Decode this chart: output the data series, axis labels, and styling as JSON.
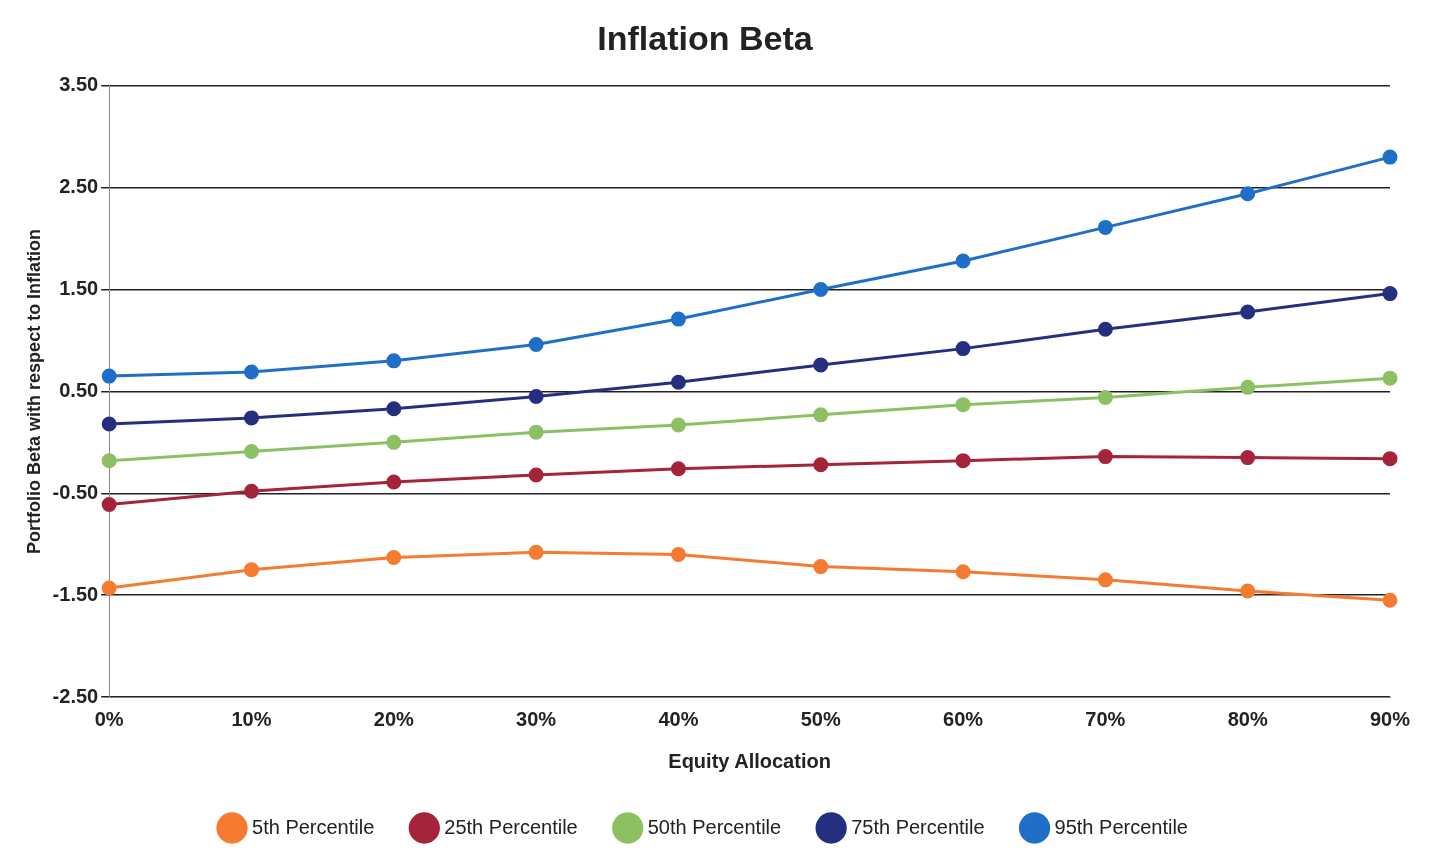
{
  "chart_data": {
    "type": "line",
    "title": "Inflation Beta",
    "xlabel": "Equity Allocation",
    "ylabel": "Portfolio Beta with respect to Inflation",
    "categories": [
      "0%",
      "10%",
      "20%",
      "30%",
      "40%",
      "50%",
      "60%",
      "70%",
      "80%",
      "90%"
    ],
    "series": [
      {
        "name": "5th Percentile",
        "color": "#f47b30",
        "values": [
          -1.43,
          -1.25,
          -1.13,
          -1.08,
          -1.1,
          -1.22,
          -1.27,
          -1.35,
          -1.46,
          -1.55
        ]
      },
      {
        "name": "25th Percentile",
        "color": "#a5243a",
        "values": [
          -0.61,
          -0.48,
          -0.39,
          -0.32,
          -0.26,
          -0.22,
          -0.18,
          -0.14,
          -0.15,
          -0.16
        ]
      },
      {
        "name": "50th Percentile",
        "color": "#8cc063",
        "values": [
          -0.18,
          -0.09,
          0.0,
          0.1,
          0.17,
          0.27,
          0.37,
          0.44,
          0.54,
          0.63
        ]
      },
      {
        "name": "75th Percentile",
        "color": "#24307f",
        "values": [
          0.18,
          0.24,
          0.33,
          0.45,
          0.59,
          0.76,
          0.92,
          1.11,
          1.28,
          1.46
        ]
      },
      {
        "name": "95th Percentile",
        "color": "#1f6fc9",
        "values": [
          0.65,
          0.69,
          0.8,
          0.96,
          1.21,
          1.5,
          1.78,
          2.11,
          2.44,
          2.8
        ]
      }
    ],
    "ylim": [
      -2.5,
      3.5
    ],
    "yticks": [
      {
        "value": -2.5,
        "label": "-2.50"
      },
      {
        "value": -1.5,
        "label": "-1.50"
      },
      {
        "value": -0.5,
        "label": "-0.50"
      },
      {
        "value": 0.5,
        "label": "0.50"
      },
      {
        "value": 1.5,
        "label": "1.50"
      },
      {
        "value": 2.5,
        "label": "2.50"
      },
      {
        "value": 3.5,
        "label": "3.50"
      }
    ],
    "grid": "y",
    "legend": "bottom",
    "marker": "circle",
    "line_style": "solid"
  }
}
